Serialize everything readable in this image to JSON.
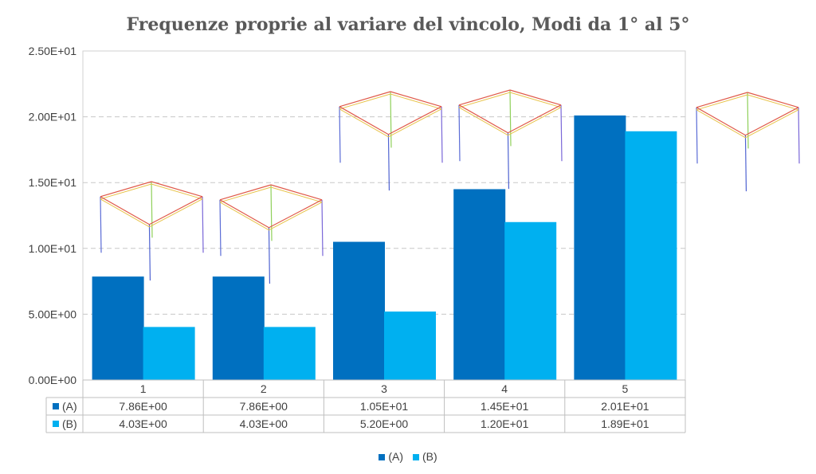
{
  "chart_data": {
    "type": "bar",
    "title": "Frequenze proprie al variare del vincolo,  Modi da 1° al 5°",
    "categories": [
      "1",
      "2",
      "3",
      "4",
      "5"
    ],
    "series": [
      {
        "name": "(A)",
        "color": "#0070C0",
        "values": [
          7.86,
          7.86,
          10.5,
          14.5,
          20.1
        ],
        "labels": [
          "7.86E+00",
          "7.86E+00",
          "1.05E+01",
          "1.45E+01",
          "2.01E+01"
        ]
      },
      {
        "name": "(B)",
        "color": "#00B0F0",
        "values": [
          4.03,
          4.03,
          5.2,
          12.0,
          18.9
        ],
        "labels": [
          "4.03E+00",
          "4.03E+00",
          "5.20E+00",
          "1.20E+01",
          "1.89E+01"
        ]
      }
    ],
    "ylim": [
      0,
      25
    ],
    "yticks": [
      0,
      5,
      10,
      15,
      20,
      25
    ],
    "ytick_labels": [
      "0.00E+00",
      "5.00E+00",
      "1.00E+01",
      "1.50E+01",
      "2.00E+01",
      "2.50E+01"
    ],
    "grid": true,
    "legend": "bottom",
    "data_table": true,
    "mode_shape_icons": [
      "frame-mode-1",
      "frame-mode-2",
      "frame-mode-3",
      "frame-mode-4",
      "frame-mode-5"
    ]
  }
}
